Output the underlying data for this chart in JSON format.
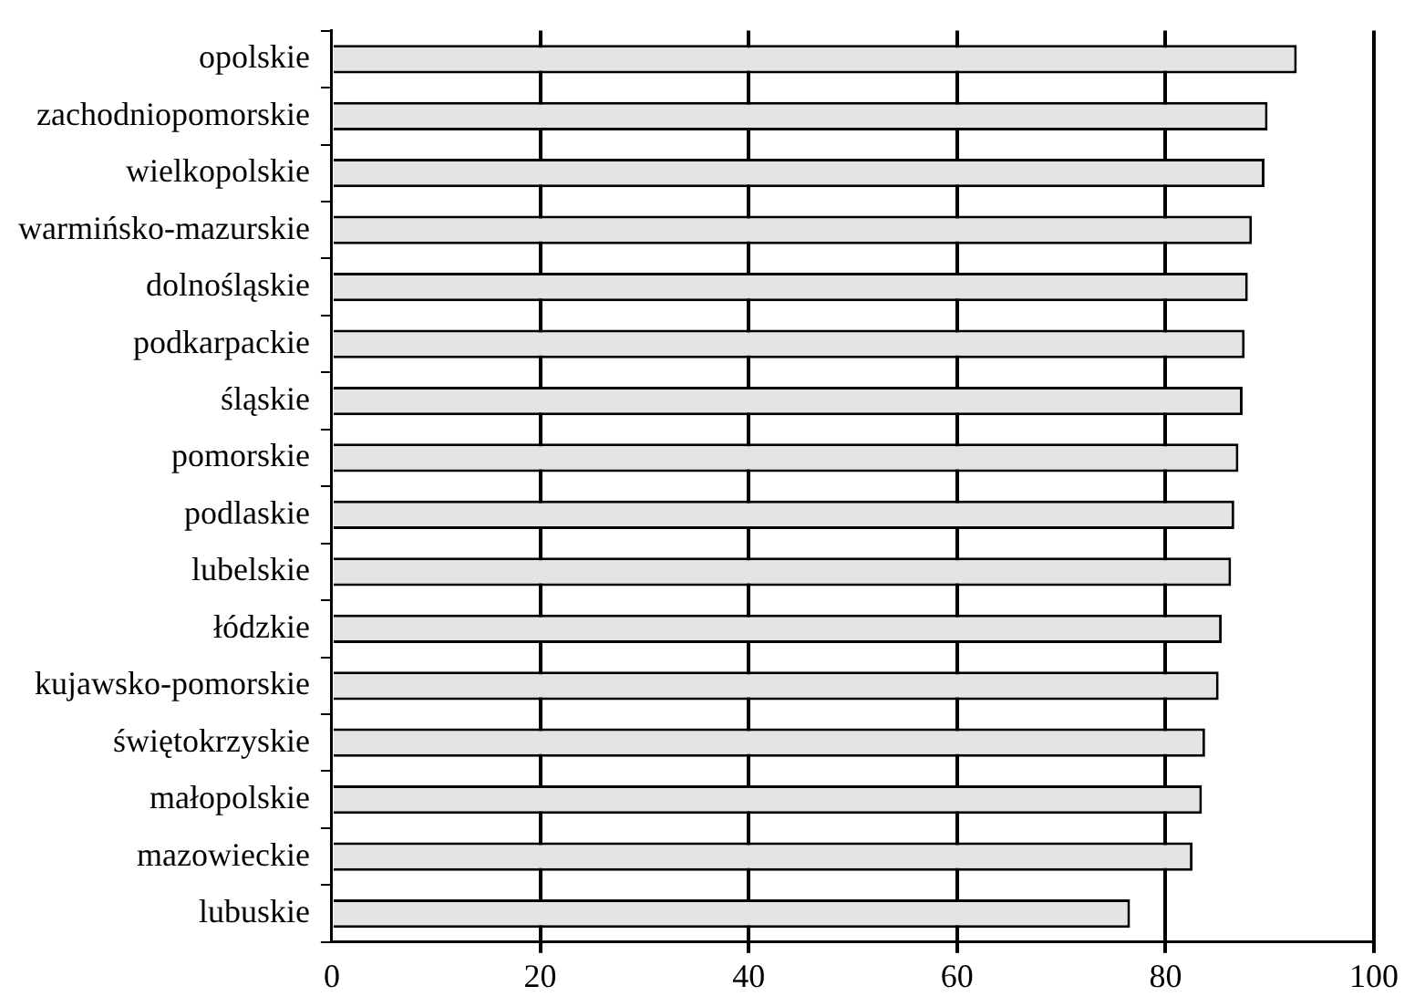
{
  "chart_data": {
    "type": "bar",
    "orientation": "horizontal",
    "categories": [
      "opolskie",
      "zachodniopomorskie",
      "wielkopolskie",
      "warmińsko-mazurskie",
      "dolnośląskie",
      "podkarpackie",
      "śląskie",
      "pomorskie",
      "podlaskie",
      "lubelskie",
      "łódzkie",
      "kujawsko-pomorskie",
      "świętokrzyskie",
      "małopolskie",
      "mazowieckie",
      "lubuskie"
    ],
    "values": [
      92.6,
      89.8,
      89.5,
      88.3,
      87.9,
      87.6,
      87.4,
      87.0,
      86.6,
      86.3,
      85.4,
      85.1,
      83.8,
      83.5,
      82.6,
      76.6
    ],
    "color": "#e4e4e4",
    "xlim": [
      0,
      100
    ],
    "xticks": [
      0,
      20,
      40,
      60,
      80,
      100
    ],
    "grid": "x",
    "legend": false
  }
}
